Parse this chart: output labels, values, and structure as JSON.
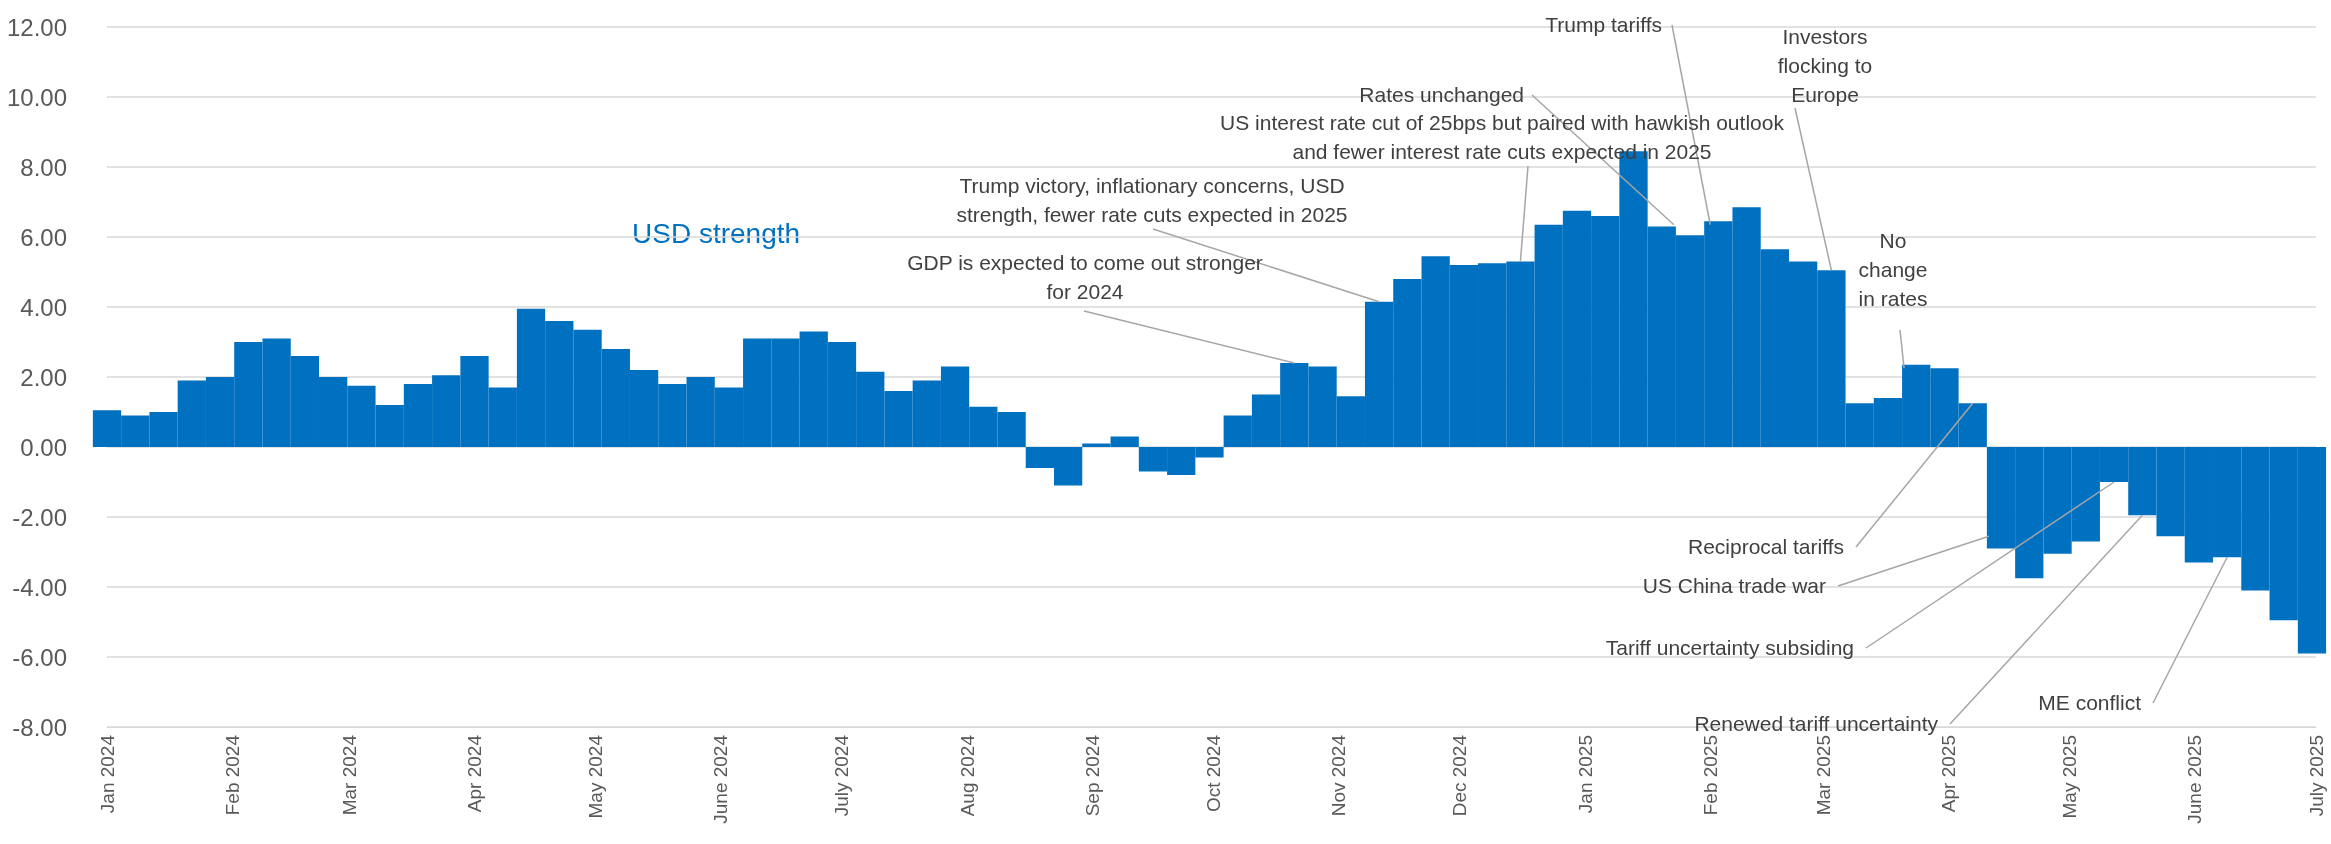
{
  "chart_data": {
    "type": "bar",
    "x": [
      "2024-01-01",
      "2024-01-08",
      "2024-01-15",
      "2024-01-22",
      "2024-01-29",
      "2024-02-05",
      "2024-02-12",
      "2024-02-19",
      "2024-02-26",
      "2024-03-04",
      "2024-03-11",
      "2024-03-18",
      "2024-03-25",
      "2024-04-01",
      "2024-04-08",
      "2024-04-15",
      "2024-04-22",
      "2024-04-29",
      "2024-05-06",
      "2024-05-13",
      "2024-05-20",
      "2024-05-27",
      "2024-06-03",
      "2024-06-10",
      "2024-06-17",
      "2024-06-24",
      "2024-07-01",
      "2024-07-08",
      "2024-07-15",
      "2024-07-22",
      "2024-07-29",
      "2024-08-05",
      "2024-08-12",
      "2024-08-19",
      "2024-08-26",
      "2024-09-02",
      "2024-09-09",
      "2024-09-16",
      "2024-09-23",
      "2024-09-30",
      "2024-10-07",
      "2024-10-14",
      "2024-10-21",
      "2024-10-28",
      "2024-11-04",
      "2024-11-11",
      "2024-11-18",
      "2024-11-25",
      "2024-12-02",
      "2024-12-09",
      "2024-12-16",
      "2024-12-23",
      "2024-12-30",
      "2025-01-06",
      "2025-01-13",
      "2025-01-20",
      "2025-01-27",
      "2025-02-03",
      "2025-02-10",
      "2025-02-17",
      "2025-02-24",
      "2025-03-03",
      "2025-03-10",
      "2025-03-17",
      "2025-03-24",
      "2025-03-31",
      "2025-04-07",
      "2025-04-14",
      "2025-04-21",
      "2025-04-28",
      "2025-05-05",
      "2025-05-12",
      "2025-05-19",
      "2025-05-26",
      "2025-06-02",
      "2025-06-09",
      "2025-06-16",
      "2025-06-23",
      "2025-06-30"
    ],
    "series": [
      {
        "name": "USD strength",
        "color": "#0070c0",
        "values": [
          1.05,
          0.9,
          1.0,
          1.9,
          2.0,
          3.0,
          3.1,
          2.6,
          2.0,
          1.75,
          1.2,
          1.8,
          2.05,
          2.6,
          1.7,
          3.95,
          3.6,
          3.35,
          2.8,
          2.2,
          1.8,
          2.0,
          1.7,
          3.1,
          3.1,
          3.3,
          3.0,
          2.15,
          1.6,
          1.9,
          2.3,
          1.15,
          1.0,
          -0.6,
          -1.1,
          0.1,
          0.3,
          -0.7,
          -0.8,
          -0.3,
          0.9,
          1.5,
          2.4,
          2.3,
          1.45,
          4.15,
          4.8,
          5.45,
          5.2,
          5.25,
          5.3,
          6.35,
          6.75,
          6.6,
          8.45,
          6.3,
          6.05,
          6.45,
          6.85,
          5.65,
          5.3,
          5.05,
          1.25,
          1.4,
          2.35,
          2.25,
          1.25,
          -2.9,
          -3.75,
          -3.05,
          -2.7,
          -1.0,
          -1.95,
          -2.55,
          -3.3,
          -3.15,
          -4.1,
          -4.95,
          -5.9
        ]
      }
    ],
    "xlim": [
      "2024-01-01",
      "2025-07-01"
    ],
    "xticks": [
      {
        "value": "2024-01",
        "label": "Jan 2024"
      },
      {
        "value": "2024-02",
        "label": "Feb 2024"
      },
      {
        "value": "2024-03",
        "label": "Mar 2024"
      },
      {
        "value": "2024-04",
        "label": "Apr 2024"
      },
      {
        "value": "2024-05",
        "label": "May 2024"
      },
      {
        "value": "2024-06",
        "label": "June 2024"
      },
      {
        "value": "2024-07",
        "label": "July 2024"
      },
      {
        "value": "2024-08",
        "label": "Aug 2024"
      },
      {
        "value": "2024-09",
        "label": "Sep 2024"
      },
      {
        "value": "2024-10",
        "label": "Oct 2024"
      },
      {
        "value": "2024-11",
        "label": "Nov 2024"
      },
      {
        "value": "2024-12",
        "label": "Dec 2024"
      },
      {
        "value": "2025-01",
        "label": "Jan 2025"
      },
      {
        "value": "2025-02",
        "label": "Feb 2025"
      },
      {
        "value": "2025-03",
        "label": "Mar 2025"
      },
      {
        "value": "2025-04",
        "label": "Apr 2025"
      },
      {
        "value": "2025-05",
        "label": "May 2025"
      },
      {
        "value": "2025-06",
        "label": "June 2025"
      },
      {
        "value": "2025-07",
        "label": "July 2025"
      }
    ],
    "ylim": [
      -8,
      12
    ],
    "yticks": [
      {
        "value": -8,
        "label": "-8.00"
      },
      {
        "value": -6,
        "label": "-6.00"
      },
      {
        "value": -4,
        "label": "-4.00"
      },
      {
        "value": -2,
        "label": "-2.00"
      },
      {
        "value": 0,
        "label": "0.00"
      },
      {
        "value": 2,
        "label": "2.00"
      },
      {
        "value": 4,
        "label": "4.00"
      },
      {
        "value": 6,
        "label": "6.00"
      },
      {
        "value": 8,
        "label": "8.00"
      },
      {
        "value": 10,
        "label": "10.00"
      },
      {
        "value": 12,
        "label": "12.00"
      }
    ],
    "grid": "y",
    "annotations": [
      {
        "text": "Trump tariffs",
        "x": "2025-02-01",
        "y": 6.35
      },
      {
        "text": "Investors flocking to Europe",
        "x": "2025-03-03",
        "y": 5.05
      },
      {
        "text": "Rates unchanged",
        "x": "2025-01-23",
        "y": 6.35
      },
      {
        "text": "US interest rate cut of 25bps but paired with hawkish outlook and fewer interest rate cuts expected in 2025",
        "x": "2024-12-16",
        "y": 5.3
      },
      {
        "text": "Trump victory, inflationary concerns, USD strength, fewer rate cuts expected in 2025",
        "x": "2024-11-11",
        "y": 4.15
      },
      {
        "text": "GDP is expected to come out stronger for 2024",
        "x": "2024-10-21",
        "y": 2.4
      },
      {
        "text": "No change in rates",
        "x": "2025-03-21",
        "y": 2.25
      },
      {
        "text": "Reciprocal tariffs",
        "x": "2025-04-07",
        "y": 1.25
      },
      {
        "text": "US China trade war",
        "x": "2025-04-11",
        "y": -2.55
      },
      {
        "text": "Tariff uncertainty subsiding",
        "x": "2025-05-12",
        "y": -1.0
      },
      {
        "text": "Renewed tariff uncertainty",
        "x": "2025-05-19",
        "y": -1.95
      },
      {
        "text": "ME conflict",
        "x": "2025-06-09",
        "y": -3.15
      }
    ]
  }
}
